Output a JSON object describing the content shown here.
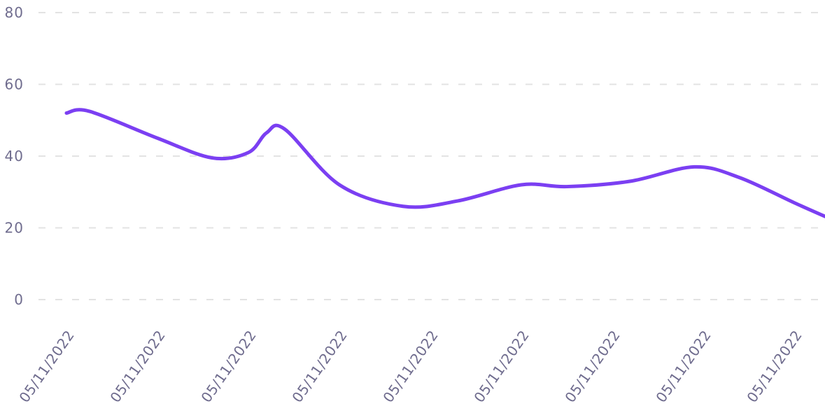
{
  "chart_data": {
    "type": "line",
    "title": "",
    "xlabel": "",
    "ylabel": "",
    "ylim": [
      0,
      80
    ],
    "yticks": [
      "0",
      "20",
      "40",
      "60",
      "80"
    ],
    "grid": true,
    "legend": "none",
    "categories": [
      "05/11/2022",
      "05/11/2022",
      "05/11/2022",
      "05/11/2022",
      "05/11/2022",
      "05/11/2022",
      "05/11/2022",
      "05/11/2022",
      "05/11/2022"
    ],
    "series": [
      {
        "values": [
          52,
          45,
          41,
          32,
          26.5,
          32,
          33,
          37,
          22.5
        ]
      }
    ],
    "line_points": [
      {
        "x": 0.0,
        "y": 52
      },
      {
        "x": 0.25,
        "y": 52.5
      },
      {
        "x": 1.0,
        "y": 45
      },
      {
        "x": 1.6,
        "y": 39.5
      },
      {
        "x": 2.0,
        "y": 41
      },
      {
        "x": 2.2,
        "y": 46.5
      },
      {
        "x": 2.4,
        "y": 47.5
      },
      {
        "x": 3.0,
        "y": 32
      },
      {
        "x": 3.7,
        "y": 26
      },
      {
        "x": 4.3,
        "y": 27.5
      },
      {
        "x": 5.0,
        "y": 32
      },
      {
        "x": 5.5,
        "y": 31.5
      },
      {
        "x": 6.2,
        "y": 33
      },
      {
        "x": 6.9,
        "y": 37
      },
      {
        "x": 7.4,
        "y": 34
      },
      {
        "x": 8.0,
        "y": 27
      },
      {
        "x": 8.4,
        "y": 22.5
      }
    ],
    "colors": {
      "line": "#7b3ff2",
      "grid": "#e3e3e3",
      "text": "#6f6c8e"
    }
  }
}
